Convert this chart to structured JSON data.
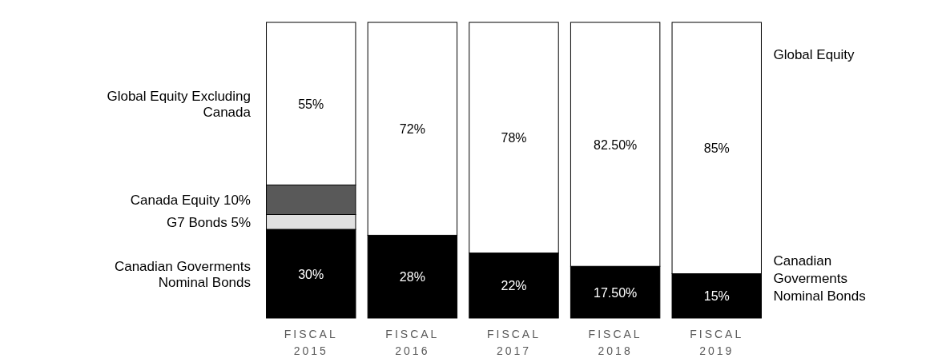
{
  "chart_data": {
    "type": "bar",
    "stacked": true,
    "categories": [
      "FISCAL 2015",
      "FISCAL 2016",
      "FISCAL 2017",
      "FISCAL 2018",
      "FISCAL 2019"
    ],
    "series": [
      {
        "name": "Canadian Goverments Nominal Bonds",
        "color": "#000000",
        "values": [
          30,
          28,
          22,
          17.5,
          15
        ],
        "value_labels": [
          "30%",
          "28%",
          "22%",
          "17.50%",
          "15%"
        ]
      },
      {
        "name": "G7 Bonds 5%",
        "color": "#e0e0e0",
        "values": [
          5,
          null,
          null,
          null,
          null
        ]
      },
      {
        "name": "Canada Equity 10%",
        "color": "#595959",
        "values": [
          10,
          null,
          null,
          null,
          null
        ]
      },
      {
        "name": "Global Equity Excluding Canada",
        "color": "#ffffff",
        "values": [
          55,
          72,
          78,
          82.5,
          85
        ],
        "value_labels": [
          "55%",
          "72%",
          "78%",
          "82.50%",
          "85%"
        ]
      }
    ],
    "annotations": [
      "Global Equity",
      "Canadian Goverments Nominal Bonds"
    ]
  }
}
